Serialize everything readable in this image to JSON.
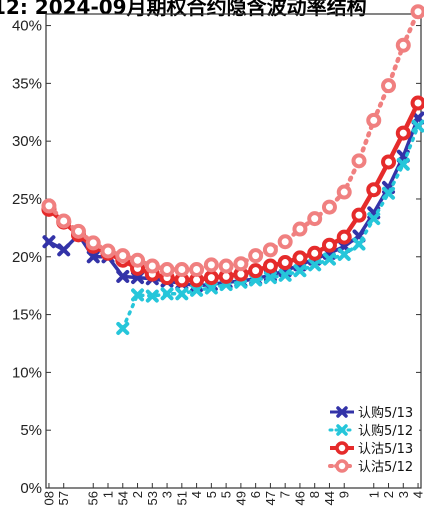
{
  "chart_data": {
    "type": "line",
    "title": "12: 2024-09月期权合约隐含波动率结构",
    "xlabel": "",
    "ylabel": "",
    "ylim": [
      0,
      41
    ],
    "yticks": [
      "0%",
      "5%",
      "10%",
      "15%",
      "20%",
      "25%",
      "30%",
      "35%",
      "40%"
    ],
    "ytick_values": [
      0,
      5,
      10,
      15,
      20,
      25,
      30,
      35,
      40
    ],
    "grid": false,
    "legend_position": "bottom-right",
    "x_tick_labels": [
      "08",
      "57",
      "56",
      "1",
      "54",
      "2",
      "53",
      "3",
      "51",
      "4",
      "5",
      "5",
      "49",
      "6",
      "47",
      "7",
      "46",
      "8",
      "44",
      "9",
      "1",
      "2",
      "3",
      "4"
    ],
    "x_tick_positions": [
      0,
      1,
      3,
      4,
      5,
      6,
      7,
      8,
      9,
      10,
      11,
      12,
      13,
      14,
      15,
      16,
      17,
      18,
      19,
      20,
      22,
      23,
      24,
      25
    ],
    "x_range": [
      -0.2,
      25.2
    ],
    "series": [
      {
        "name": "认购5/13",
        "color": "#3333a8",
        "marker": "x",
        "dashed": false,
        "x": [
          0,
          1,
          2,
          3,
          4,
          5,
          6,
          7,
          8,
          9,
          10,
          11,
          12,
          13,
          14,
          15,
          16,
          17,
          18,
          19,
          20,
          21,
          22,
          23,
          24,
          25
        ],
        "values": [
          21.3,
          20.6,
          21.9,
          20.0,
          20.0,
          18.3,
          18.2,
          18.1,
          17.9,
          17.7,
          17.5,
          17.6,
          17.8,
          17.9,
          18.1,
          18.4,
          18.8,
          19.3,
          19.8,
          20.3,
          20.9,
          21.8,
          23.8,
          26.0,
          28.7,
          32.0
        ]
      },
      {
        "name": "认购5/12",
        "color": "#26c6da",
        "marker": "x",
        "dashed": true,
        "x": [
          5,
          6,
          7,
          8,
          9,
          10,
          11,
          12,
          13,
          14,
          15,
          16,
          17,
          18,
          19,
          20,
          21,
          22,
          23,
          24,
          25
        ],
        "values": [
          13.8,
          16.7,
          16.6,
          16.8,
          16.8,
          17.1,
          17.3,
          17.6,
          17.8,
          18.0,
          18.2,
          18.4,
          18.8,
          19.3,
          19.8,
          20.2,
          21.1,
          23.3,
          25.5,
          28.0,
          31.3
        ]
      },
      {
        "name": "认沽5/13",
        "color": "#e52b2b",
        "marker": "o",
        "dashed": false,
        "x": [
          0,
          1,
          2,
          3,
          4,
          5,
          6,
          7,
          8,
          9,
          10,
          11,
          12,
          13,
          14,
          15,
          16,
          17,
          18,
          19,
          20,
          21,
          22,
          23,
          24,
          25
        ],
        "values": [
          24.1,
          23.0,
          21.9,
          20.9,
          20.3,
          19.7,
          19.0,
          18.5,
          18.2,
          18.0,
          18.0,
          18.2,
          18.3,
          18.5,
          18.8,
          19.2,
          19.5,
          19.9,
          20.3,
          21.0,
          21.7,
          23.6,
          25.8,
          28.2,
          30.7,
          33.3
        ]
      },
      {
        "name": "认沽5/12",
        "color": "#f08080",
        "marker": "o",
        "dashed": true,
        "x": [
          0,
          1,
          2,
          3,
          4,
          5,
          6,
          7,
          8,
          9,
          10,
          11,
          12,
          13,
          14,
          15,
          16,
          17,
          18,
          19,
          20,
          21,
          22,
          23,
          24,
          25
        ],
        "values": [
          24.4,
          23.1,
          22.2,
          21.2,
          20.5,
          20.1,
          19.7,
          19.2,
          18.9,
          18.9,
          18.9,
          19.3,
          19.2,
          19.4,
          20.1,
          20.6,
          21.3,
          22.4,
          23.3,
          24.3,
          25.6,
          28.3,
          31.8,
          34.8,
          38.3,
          41.2
        ]
      }
    ]
  }
}
